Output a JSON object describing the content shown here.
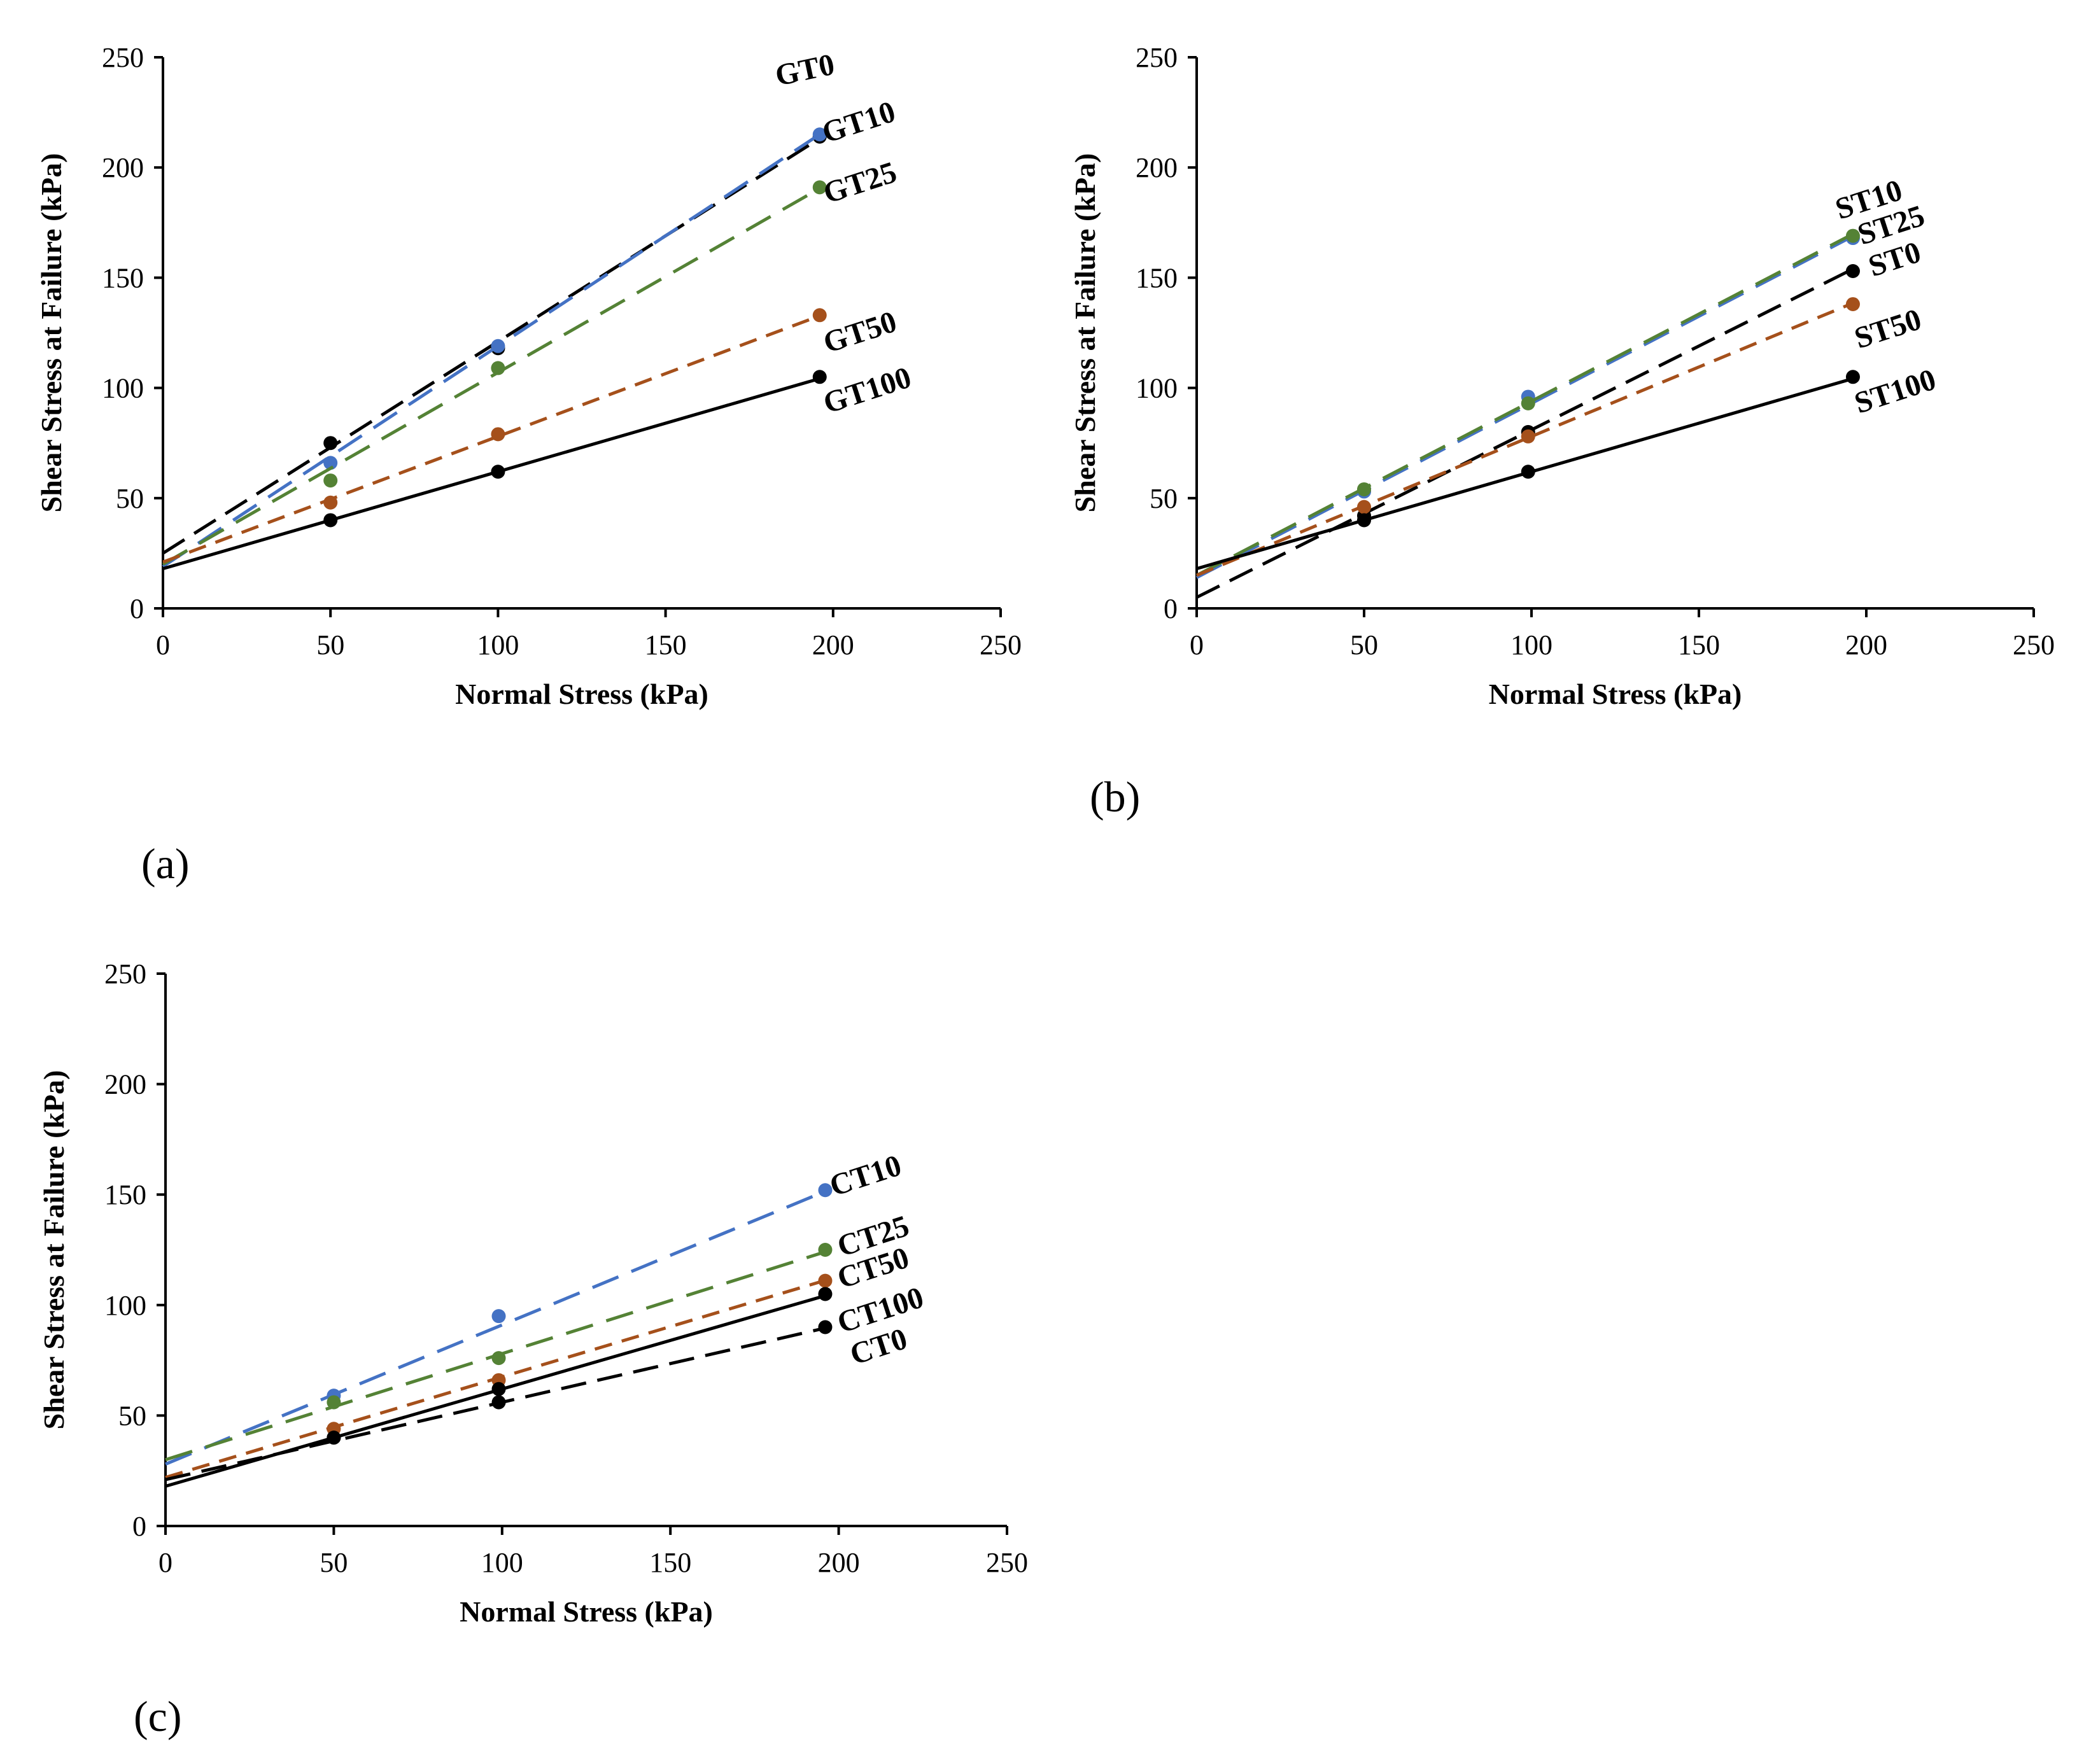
{
  "chart_data": [
    {
      "type": "scatter",
      "panel_label": "(a)",
      "xlabel": "Normal Stress (kPa)",
      "ylabel": "Shear Stress at Failure (kPa)",
      "xlim": [
        0,
        250
      ],
      "ylim": [
        0,
        250
      ],
      "xticks": [
        0,
        50,
        100,
        150,
        200,
        250
      ],
      "yticks": [
        0,
        50,
        100,
        150,
        200,
        250
      ],
      "series": [
        {
          "name": "GT0",
          "color": "#000000",
          "style": "dashed",
          "x": [
            50,
            100,
            196
          ],
          "y": [
            75,
            118,
            214
          ],
          "fit": [
            25,
            0.96
          ]
        },
        {
          "name": "GT10",
          "color": "#4472c4",
          "style": "dashed",
          "x": [
            50,
            100,
            196
          ],
          "y": [
            66,
            119,
            215
          ],
          "fit": [
            19,
            1.0
          ]
        },
        {
          "name": "GT25",
          "color": "#548235",
          "style": "dashed",
          "x": [
            50,
            100,
            196
          ],
          "y": [
            58,
            109,
            191
          ],
          "fit": [
            20,
            0.87
          ]
        },
        {
          "name": "GT50",
          "color": "#a5501b",
          "style": "dashed",
          "x": [
            50,
            100,
            196
          ],
          "y": [
            48,
            79,
            133
          ],
          "fit": [
            21,
            0.57
          ]
        },
        {
          "name": "GT100",
          "color": "#000000",
          "style": "solid",
          "x": [
            50,
            100,
            196
          ],
          "y": [
            40,
            62,
            105
          ],
          "fit": [
            18,
            0.44
          ]
        }
      ]
    },
    {
      "type": "scatter",
      "panel_label": "(b)",
      "xlabel": "Normal Stress (kPa)",
      "ylabel": "Shear Stress at Failure (kPa)",
      "xlim": [
        0,
        250
      ],
      "ylim": [
        0,
        250
      ],
      "xticks": [
        0,
        50,
        100,
        150,
        200,
        250
      ],
      "yticks": [
        0,
        50,
        100,
        150,
        200,
        250
      ],
      "series": [
        {
          "name": "ST10",
          "color": "#4472c4",
          "style": "dashed",
          "x": [
            50,
            99,
            196
          ],
          "y": [
            53,
            96,
            168
          ],
          "fit": [
            14,
            0.79
          ]
        },
        {
          "name": "ST25",
          "color": "#548235",
          "style": "dashed",
          "x": [
            50,
            99,
            196
          ],
          "y": [
            54,
            93,
            169
          ],
          "fit": [
            15,
            0.79
          ]
        },
        {
          "name": "ST0",
          "color": "#000000",
          "style": "dashed",
          "x": [
            50,
            99,
            196
          ],
          "y": [
            42,
            80,
            153
          ],
          "fit": [
            5,
            0.76
          ]
        },
        {
          "name": "ST50",
          "color": "#a5501b",
          "style": "dashed",
          "x": [
            50,
            99,
            196
          ],
          "y": [
            46,
            78,
            138
          ],
          "fit": [
            15,
            0.63
          ]
        },
        {
          "name": "ST100",
          "color": "#000000",
          "style": "solid",
          "x": [
            50,
            99,
            196
          ],
          "y": [
            40,
            62,
            105
          ],
          "fit": [
            18,
            0.44
          ]
        }
      ]
    },
    {
      "type": "scatter",
      "panel_label": "(c)",
      "xlabel": "Normal Stress (kPa)",
      "ylabel": "Shear Stress at Failure (kPa)",
      "xlim": [
        0,
        250
      ],
      "ylim": [
        0,
        250
      ],
      "xticks": [
        0,
        50,
        100,
        150,
        200,
        250
      ],
      "yticks": [
        0,
        50,
        100,
        150,
        200,
        250
      ],
      "series": [
        {
          "name": "CT10",
          "color": "#4472c4",
          "style": "dashed",
          "x": [
            50,
            99,
            196
          ],
          "y": [
            59,
            95,
            152
          ],
          "fit": [
            28,
            0.63
          ]
        },
        {
          "name": "CT25",
          "color": "#548235",
          "style": "dashed",
          "x": [
            50,
            99,
            196
          ],
          "y": [
            56,
            76,
            125
          ],
          "fit": [
            30,
            0.48
          ]
        },
        {
          "name": "CT50",
          "color": "#a5501b",
          "style": "dashed",
          "x": [
            50,
            99,
            196
          ],
          "y": [
            44,
            66,
            111
          ],
          "fit": [
            22,
            0.455
          ]
        },
        {
          "name": "CT100",
          "color": "#000000",
          "style": "solid",
          "x": [
            50,
            99,
            196
          ],
          "y": [
            40,
            62,
            105
          ],
          "fit": [
            18,
            0.44
          ]
        },
        {
          "name": "CT0",
          "color": "#000000",
          "style": "dashed",
          "x": [
            50,
            99,
            196
          ],
          "y": [
            40,
            56,
            90
          ],
          "fit": [
            21,
            0.35
          ]
        }
      ]
    }
  ]
}
